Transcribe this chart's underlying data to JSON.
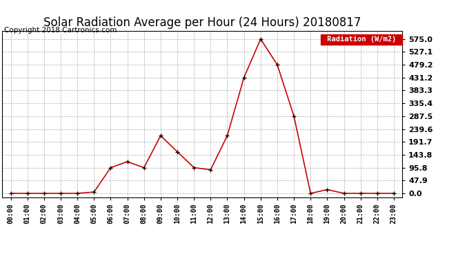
{
  "title": "Solar Radiation Average per Hour (24 Hours) 20180817",
  "copyright": "Copyright 2018 Cartronics.com",
  "legend_label": "Radiation (W/m2)",
  "hours": [
    "00:00",
    "01:00",
    "02:00",
    "03:00",
    "04:00",
    "05:00",
    "06:00",
    "07:00",
    "08:00",
    "09:00",
    "10:00",
    "11:00",
    "12:00",
    "13:00",
    "14:00",
    "15:00",
    "16:00",
    "17:00",
    "18:00",
    "19:00",
    "20:00",
    "21:00",
    "22:00",
    "23:00"
  ],
  "values": [
    0.0,
    0.0,
    0.0,
    0.0,
    0.0,
    5.0,
    95.8,
    118.0,
    95.8,
    215.0,
    155.0,
    95.8,
    88.0,
    215.0,
    431.2,
    575.0,
    479.2,
    287.5,
    0.0,
    14.0,
    0.0,
    0.0,
    0.0,
    0.0
  ],
  "line_color": "#cc0000",
  "marker": "+",
  "marker_size": 5,
  "bg_color": "#ffffff",
  "grid_color": "#aaaaaa",
  "legend_bg": "#cc0000",
  "legend_text_color": "#ffffff",
  "yticks": [
    0.0,
    47.9,
    95.8,
    143.8,
    191.7,
    239.6,
    287.5,
    335.4,
    383.3,
    431.2,
    479.2,
    527.1,
    575.0
  ],
  "ylim": [
    -15,
    605
  ],
  "title_fontsize": 12,
  "copyright_fontsize": 7.5,
  "tick_fontsize": 8,
  "xtick_fontsize": 7
}
